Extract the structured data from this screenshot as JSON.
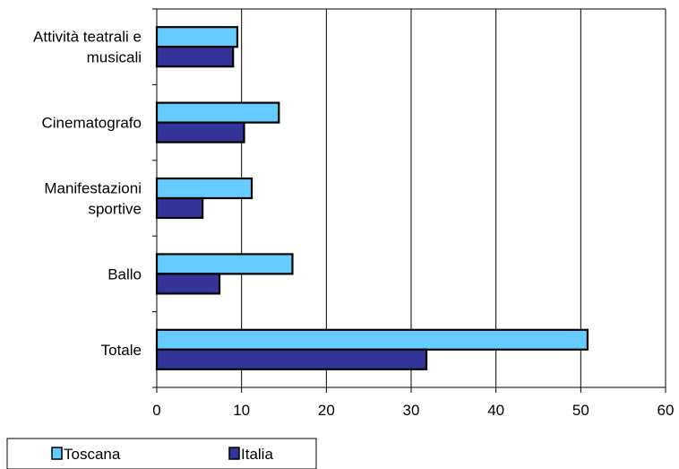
{
  "chart_data": {
    "type": "bar",
    "orientation": "horizontal",
    "categories": [
      [
        "Attività teatrali e",
        "musicali"
      ],
      [
        "Cinematografo"
      ],
      [
        "Manifestazioni",
        "sportive"
      ],
      [
        "Ballo"
      ],
      [
        "Totale"
      ]
    ],
    "series": [
      {
        "name": "Toscana",
        "color": "#66CCFF",
        "values": [
          9.5,
          14.4,
          11.2,
          16.0,
          50.8
        ]
      },
      {
        "name": "Italia",
        "color": "#333399",
        "values": [
          9.0,
          10.3,
          5.4,
          7.4,
          31.8
        ]
      }
    ],
    "xlim": [
      0,
      60
    ],
    "xticks": [
      "0",
      "10",
      "20",
      "30",
      "40",
      "50",
      "60"
    ],
    "grid": "vertical",
    "legend_position": "bottom-left"
  }
}
